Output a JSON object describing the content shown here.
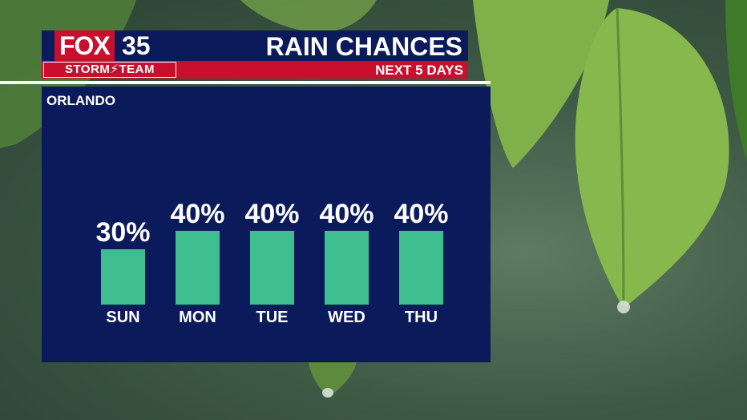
{
  "brand": {
    "logo_fox": "FOX",
    "logo_number": "35",
    "logo_team": "STORM⚡TEAM",
    "red": "#c8102e",
    "navy": "#0b1a5a"
  },
  "header": {
    "title": "RAIN CHANCES",
    "subtitle": "NEXT 5 DAYS"
  },
  "location": "ORLANDO",
  "chart_data": {
    "type": "bar",
    "categories": [
      "SUN",
      "MON",
      "TUE",
      "WED",
      "THU"
    ],
    "values": [
      30,
      40,
      40,
      40,
      40
    ],
    "data_labels": [
      "30%",
      "40%",
      "40%",
      "40%",
      "40%"
    ],
    "unit": "%",
    "bar_color": "#3fbf8f",
    "ylim": [
      0,
      100
    ],
    "grid": false,
    "legend": "none"
  },
  "background": {
    "leaf_light": "#7fb04a",
    "leaf_dark": "#3f7a2a"
  }
}
